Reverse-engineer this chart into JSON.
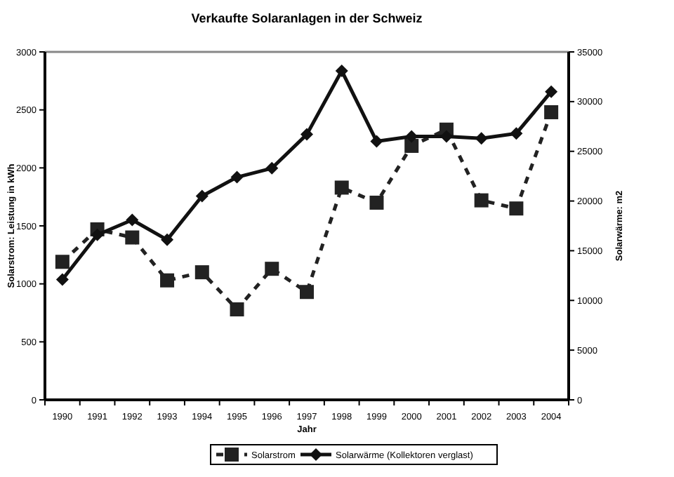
{
  "chart_data": {
    "type": "line",
    "title": "Verkaufte Solaranlagen in der Schweiz",
    "xlabel": "Jahr",
    "ylabel": "Solarstrom: Leistung in kWh",
    "y2label": "Solarwärme: m2",
    "categories": [
      "1990",
      "1991",
      "1992",
      "1993",
      "1994",
      "1995",
      "1996",
      "1997",
      "1998",
      "1999",
      "2000",
      "2001",
      "2002",
      "2003",
      "2004"
    ],
    "series": [
      {
        "name": "Solarstrom",
        "color": "#222222",
        "marker": "square",
        "line_style": "dashed",
        "values": [
          1190,
          1470,
          1400,
          1030,
          1100,
          780,
          1130,
          930,
          1830,
          1700,
          2190,
          2330,
          1720,
          1650,
          2480
        ]
      },
      {
        "name": "Solarwärme (Kollektoren verglast)",
        "color": "#111111",
        "marker": "diamond",
        "line_style": "solid",
        "axis": "y2",
        "values": [
          12100,
          16600,
          18100,
          16100,
          20500,
          22400,
          23300,
          26700,
          33100,
          26000,
          26500,
          26500,
          26300,
          26800,
          31000
        ]
      }
    ],
    "ylim": [
      0,
      3000
    ],
    "yticks": [
      0,
      500,
      1000,
      1500,
      2000,
      2500,
      3000
    ],
    "y2lim": [
      0,
      35000
    ],
    "y2ticks": [
      0,
      5000,
      10000,
      15000,
      20000,
      25000,
      30000,
      35000
    ],
    "legend": "bottom"
  }
}
